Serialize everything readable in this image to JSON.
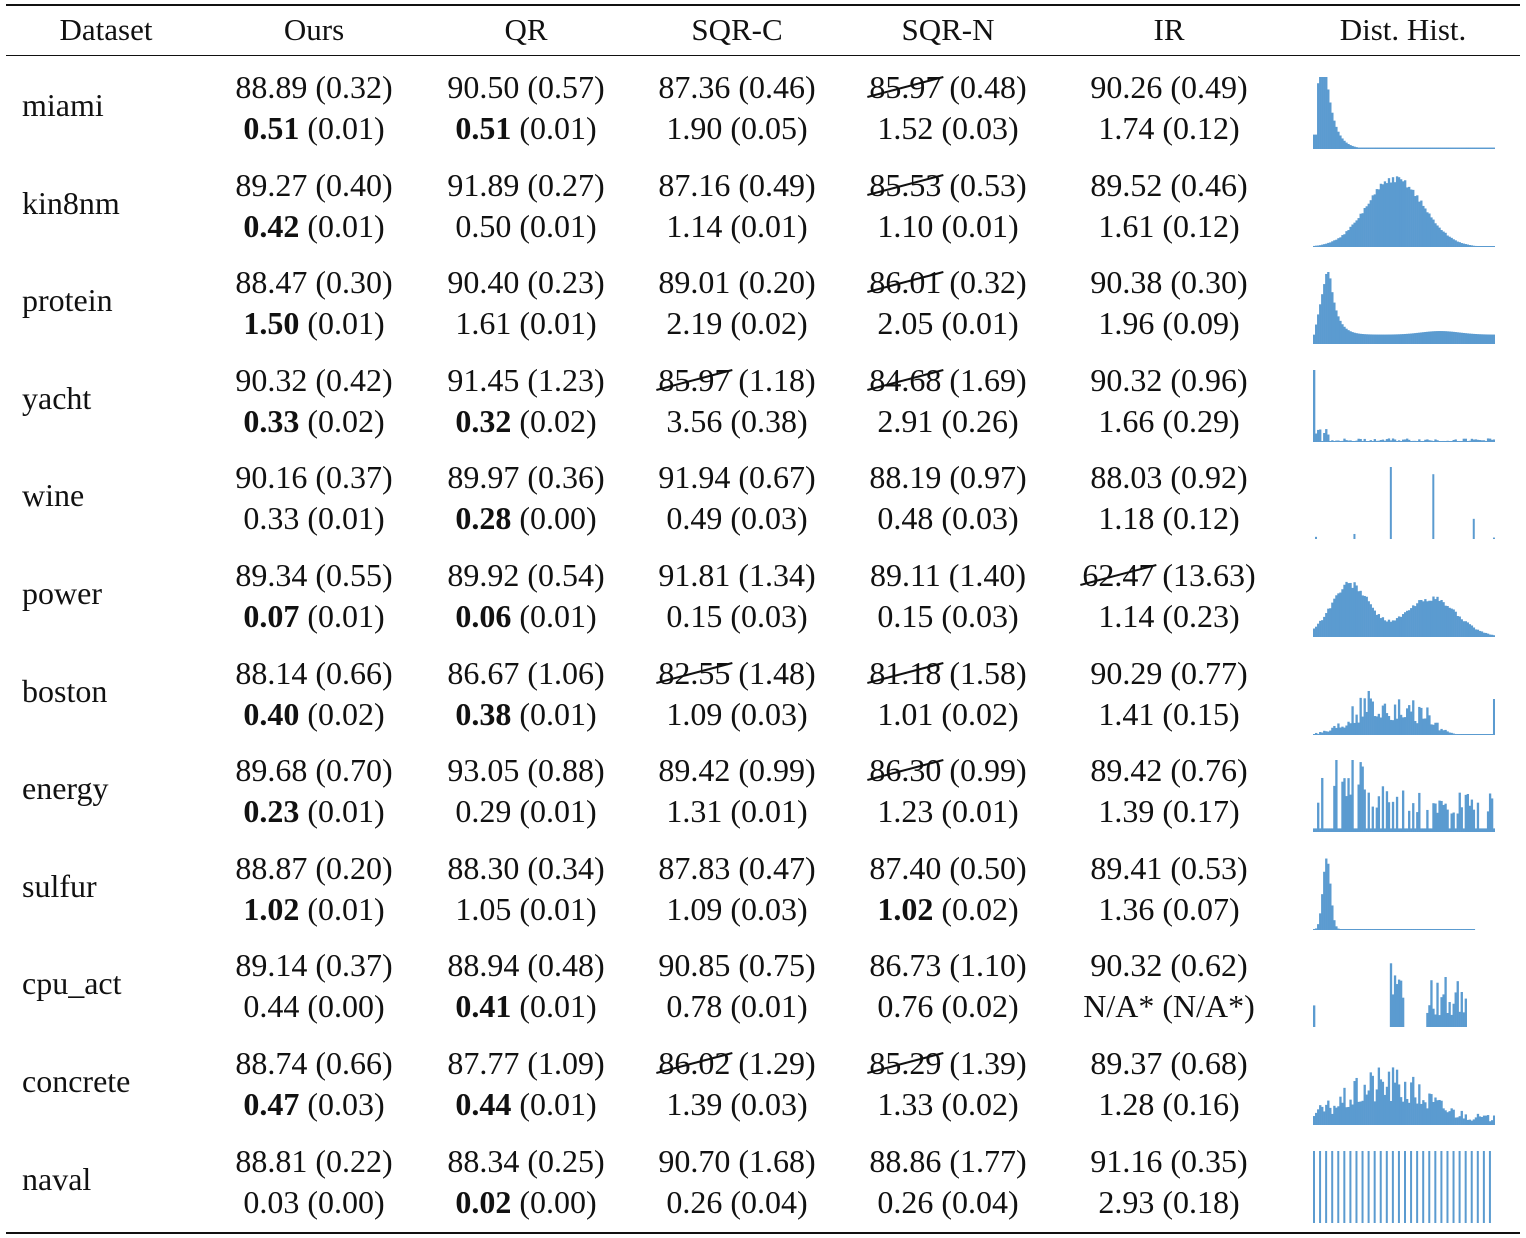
{
  "headers": [
    "Dataset",
    "Ours",
    "QR",
    "SQR-C",
    "SQR-N",
    "IR",
    "Dist. Hist."
  ],
  "colors": {
    "hist_fill": "#5b9bd0",
    "text": "#111111"
  },
  "rows": [
    {
      "name": "miami",
      "hist": "right-skewed",
      "cov": [
        {
          "v": "88.89",
          "s": "(0.32)"
        },
        {
          "v": "90.50",
          "s": "(0.57)"
        },
        {
          "v": "87.36",
          "s": "(0.46)"
        },
        {
          "v": "85.97",
          "s": "(0.48)",
          "strike": true
        },
        {
          "v": "90.26",
          "s": "(0.49)"
        }
      ],
      "len": [
        {
          "v": "0.51",
          "s": "(0.01)",
          "bold": true
        },
        {
          "v": "0.51",
          "s": "(0.01)",
          "bold": true
        },
        {
          "v": "1.90",
          "s": "(0.05)"
        },
        {
          "v": "1.52",
          "s": "(0.03)"
        },
        {
          "v": "1.74",
          "s": "(0.12)"
        }
      ]
    },
    {
      "name": "kin8nm",
      "hist": "bell",
      "cov": [
        {
          "v": "89.27",
          "s": "(0.40)"
        },
        {
          "v": "91.89",
          "s": "(0.27)"
        },
        {
          "v": "87.16",
          "s": "(0.49)"
        },
        {
          "v": "85.53",
          "s": "(0.53)",
          "strike": true
        },
        {
          "v": "89.52",
          "s": "(0.46)"
        }
      ],
      "len": [
        {
          "v": "0.42",
          "s": "(0.01)",
          "bold": true
        },
        {
          "v": "0.50",
          "s": "(0.01)"
        },
        {
          "v": "1.14",
          "s": "(0.01)"
        },
        {
          "v": "1.10",
          "s": "(0.01)"
        },
        {
          "v": "1.61",
          "s": "(0.12)"
        }
      ]
    },
    {
      "name": "protein",
      "hist": "skew-tail",
      "cov": [
        {
          "v": "88.47",
          "s": "(0.30)"
        },
        {
          "v": "90.40",
          "s": "(0.23)"
        },
        {
          "v": "89.01",
          "s": "(0.20)"
        },
        {
          "v": "86.01",
          "s": "(0.32)",
          "strike": true
        },
        {
          "v": "90.38",
          "s": "(0.30)"
        }
      ],
      "len": [
        {
          "v": "1.50",
          "s": "(0.01)",
          "bold": true
        },
        {
          "v": "1.61",
          "s": "(0.01)"
        },
        {
          "v": "2.19",
          "s": "(0.02)"
        },
        {
          "v": "2.05",
          "s": "(0.01)"
        },
        {
          "v": "1.96",
          "s": "(0.09)"
        }
      ]
    },
    {
      "name": "yacht",
      "hist": "spike-left",
      "cov": [
        {
          "v": "90.32",
          "s": "(0.42)"
        },
        {
          "v": "91.45",
          "s": "(1.23)"
        },
        {
          "v": "85.97",
          "s": "(1.18)",
          "strike": true
        },
        {
          "v": "84.68",
          "s": "(1.69)",
          "strike": true
        },
        {
          "v": "90.32",
          "s": "(0.96)"
        }
      ],
      "len": [
        {
          "v": "0.33",
          "s": "(0.02)",
          "bold": true
        },
        {
          "v": "0.32",
          "s": "(0.02)",
          "bold": true
        },
        {
          "v": "3.56",
          "s": "(0.38)"
        },
        {
          "v": "2.91",
          "s": "(0.26)"
        },
        {
          "v": "1.66",
          "s": "(0.29)"
        }
      ]
    },
    {
      "name": "wine",
      "hist": "discrete",
      "cov": [
        {
          "v": "90.16",
          "s": "(0.37)"
        },
        {
          "v": "89.97",
          "s": "(0.36)"
        },
        {
          "v": "91.94",
          "s": "(0.67)"
        },
        {
          "v": "88.19",
          "s": "(0.97)"
        },
        {
          "v": "88.03",
          "s": "(0.92)"
        }
      ],
      "len": [
        {
          "v": "0.33",
          "s": "(0.01)"
        },
        {
          "v": "0.28",
          "s": "(0.00)",
          "bold": true
        },
        {
          "v": "0.49",
          "s": "(0.03)"
        },
        {
          "v": "0.48",
          "s": "(0.03)"
        },
        {
          "v": "1.18",
          "s": "(0.12)"
        }
      ]
    },
    {
      "name": "power",
      "hist": "bimodal",
      "cov": [
        {
          "v": "89.34",
          "s": "(0.55)"
        },
        {
          "v": "89.92",
          "s": "(0.54)"
        },
        {
          "v": "91.81",
          "s": "(1.34)"
        },
        {
          "v": "89.11",
          "s": "(1.40)"
        },
        {
          "v": "62.47",
          "s": "(13.63)",
          "strike": true
        }
      ],
      "len": [
        {
          "v": "0.07",
          "s": "(0.01)",
          "bold": true
        },
        {
          "v": "0.06",
          "s": "(0.01)",
          "bold": true
        },
        {
          "v": "0.15",
          "s": "(0.03)"
        },
        {
          "v": "0.15",
          "s": "(0.03)"
        },
        {
          "v": "1.14",
          "s": "(0.23)"
        }
      ]
    },
    {
      "name": "boston",
      "hist": "noisy-center",
      "cov": [
        {
          "v": "88.14",
          "s": "(0.66)"
        },
        {
          "v": "86.67",
          "s": "(1.06)"
        },
        {
          "v": "82.55",
          "s": "(1.48)",
          "strike": true
        },
        {
          "v": "81.18",
          "s": "(1.58)",
          "strike": true
        },
        {
          "v": "90.29",
          "s": "(0.77)"
        }
      ],
      "len": [
        {
          "v": "0.40",
          "s": "(0.02)",
          "bold": true
        },
        {
          "v": "0.38",
          "s": "(0.01)",
          "bold": true
        },
        {
          "v": "1.09",
          "s": "(0.03)"
        },
        {
          "v": "1.01",
          "s": "(0.02)"
        },
        {
          "v": "1.41",
          "s": "(0.15)"
        }
      ]
    },
    {
      "name": "energy",
      "hist": "multi-cluster",
      "cov": [
        {
          "v": "89.68",
          "s": "(0.70)"
        },
        {
          "v": "93.05",
          "s": "(0.88)"
        },
        {
          "v": "89.42",
          "s": "(0.99)"
        },
        {
          "v": "86.30",
          "s": "(0.99)",
          "strike": true
        },
        {
          "v": "89.42",
          "s": "(0.76)"
        }
      ],
      "len": [
        {
          "v": "0.23",
          "s": "(0.01)",
          "bold": true
        },
        {
          "v": "0.29",
          "s": "(0.01)"
        },
        {
          "v": "1.31",
          "s": "(0.01)"
        },
        {
          "v": "1.23",
          "s": "(0.01)"
        },
        {
          "v": "1.39",
          "s": "(0.17)"
        }
      ]
    },
    {
      "name": "sulfur",
      "hist": "narrow-left",
      "cov": [
        {
          "v": "88.87",
          "s": "(0.20)"
        },
        {
          "v": "88.30",
          "s": "(0.34)"
        },
        {
          "v": "87.83",
          "s": "(0.47)"
        },
        {
          "v": "87.40",
          "s": "(0.50)"
        },
        {
          "v": "89.41",
          "s": "(0.53)"
        }
      ],
      "len": [
        {
          "v": "1.02",
          "s": "(0.01)",
          "bold": true
        },
        {
          "v": "1.05",
          "s": "(0.01)"
        },
        {
          "v": "1.09",
          "s": "(0.03)"
        },
        {
          "v": "1.02",
          "s": "(0.02)",
          "bold": true
        },
        {
          "v": "1.36",
          "s": "(0.07)"
        }
      ]
    },
    {
      "name": "cpu_act",
      "hist": "sparse-clusters",
      "cov": [
        {
          "v": "89.14",
          "s": "(0.37)"
        },
        {
          "v": "88.94",
          "s": "(0.48)"
        },
        {
          "v": "90.85",
          "s": "(0.75)"
        },
        {
          "v": "86.73",
          "s": "(1.10)"
        },
        {
          "v": "90.32",
          "s": "(0.62)"
        }
      ],
      "len": [
        {
          "v": "0.44",
          "s": "(0.00)"
        },
        {
          "v": "0.41",
          "s": "(0.01)",
          "bold": true
        },
        {
          "v": "0.78",
          "s": "(0.01)"
        },
        {
          "v": "0.76",
          "s": "(0.02)"
        },
        {
          "v": "N/A*",
          "s": "(N/A*)"
        }
      ]
    },
    {
      "name": "concrete",
      "hist": "noisy-wide",
      "cov": [
        {
          "v": "88.74",
          "s": "(0.66)"
        },
        {
          "v": "87.77",
          "s": "(1.09)"
        },
        {
          "v": "86.02",
          "s": "(1.29)",
          "strike": true
        },
        {
          "v": "85.29",
          "s": "(1.39)",
          "strike": true
        },
        {
          "v": "89.37",
          "s": "(0.68)"
        }
      ],
      "len": [
        {
          "v": "0.47",
          "s": "(0.03)",
          "bold": true
        },
        {
          "v": "0.44",
          "s": "(0.01)",
          "bold": true
        },
        {
          "v": "1.39",
          "s": "(0.03)"
        },
        {
          "v": "1.33",
          "s": "(0.02)"
        },
        {
          "v": "1.28",
          "s": "(0.16)"
        }
      ]
    },
    {
      "name": "naval",
      "hist": "uniform-lines",
      "cov": [
        {
          "v": "88.81",
          "s": "(0.22)"
        },
        {
          "v": "88.34",
          "s": "(0.25)"
        },
        {
          "v": "90.70",
          "s": "(1.68)"
        },
        {
          "v": "88.86",
          "s": "(1.77)"
        },
        {
          "v": "91.16",
          "s": "(0.35)"
        }
      ],
      "len": [
        {
          "v": "0.03",
          "s": "(0.00)"
        },
        {
          "v": "0.02",
          "s": "(0.00)",
          "bold": true
        },
        {
          "v": "0.26",
          "s": "(0.04)"
        },
        {
          "v": "0.26",
          "s": "(0.04)"
        },
        {
          "v": "2.93",
          "s": "(0.18)"
        }
      ]
    }
  ]
}
